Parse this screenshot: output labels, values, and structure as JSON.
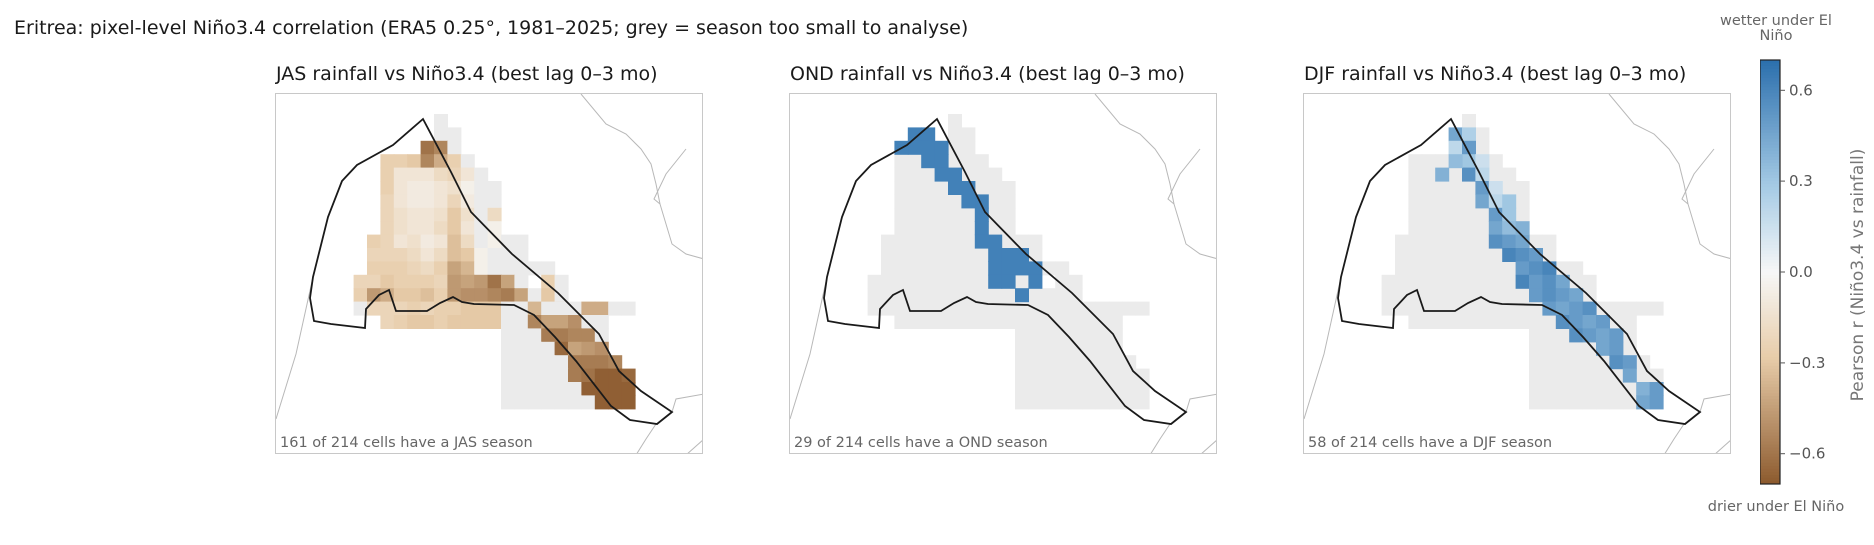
{
  "chart_data": {
    "type": "heatmap",
    "title": "Eritrea: pixel-level Niño3.4 correlation (ERA5 0.25°, 1981–2025; grey = season too small to analyse)",
    "colorbar": {
      "label": "Pearson r (Niño3.4 vs rainfall)",
      "range": [
        -0.7,
        0.7
      ],
      "ticks": [
        -0.6,
        -0.3,
        0.0,
        0.3,
        0.6
      ],
      "tick_labels": [
        "−0.6",
        "−0.3",
        "0.0",
        "0.3",
        "0.6"
      ],
      "top_label": "wetter under El Niño",
      "bottom_label": "drier under El Niño",
      "colors": {
        "negative": "#8c5a2e",
        "mid": "#f7f7f7",
        "positive": "#2b6fad"
      }
    },
    "grey_color": "#ebebeb",
    "panels": [
      {
        "season": "JAS",
        "title": "JAS rainfall vs Niño3.4 (best lag 0–3 mo)",
        "note": "161 of 214 cells have a JAS season",
        "rows": [
          "..........?.........",
          "..........??........",
          ".........QO?........",
          "......GGHOKG?.......",
          "......GCCCEFC?......",
          "......GCBBCDA??.....",
          "......FCBBCFB??.....",
          "......FDCCDHD?E.....",
          "......FDCCEHC?A.....",
          ".....GFCDBCIE?A??...",
          ".....FFFECEIHA???...",
          ".....GGGFEGLJA?????.",
          "....FFHGGGFMLMQL?.G?",
          "....GMKHHIGMNNOPL?H?",
          "....?FFFGFGGHHHHA?IH",
          "......FGHHGHHHHHHA??"
        ],
        "rows2": [
          "??J???KK??",
          "??OLLN??..",
          "???PPOO?..",
          "????RLMN..",
          "?????PPPO.",
          "?????PQSSR",
          "??????SSSS",
          "???????SSS"
        ]
      },
      {
        "season": "OND",
        "title": "OND rainfall vs Niño3.4 (best lag 0–3 mo)",
        "note": "29 of 214 cells have a OND season",
        "blue_cells": [
          [
            7,
            1
          ],
          [
            8,
            1
          ],
          [
            7,
            2
          ],
          [
            8,
            2
          ],
          [
            9,
            2
          ],
          [
            6,
            2
          ],
          [
            8,
            3
          ],
          [
            9,
            3
          ],
          [
            9,
            4
          ],
          [
            10,
            4
          ],
          [
            11,
            5
          ],
          [
            12,
            6
          ],
          [
            12,
            7
          ],
          [
            12,
            8
          ],
          [
            12,
            9
          ],
          [
            13,
            9
          ],
          [
            13,
            10
          ],
          [
            14,
            10
          ],
          [
            15,
            10
          ],
          [
            13,
            11
          ],
          [
            14,
            11
          ],
          [
            15,
            11
          ],
          [
            16,
            11
          ],
          [
            13,
            12
          ],
          [
            14,
            12
          ],
          [
            16,
            12
          ],
          [
            15,
            13
          ],
          [
            10,
            5
          ],
          [
            11,
            6
          ]
        ],
        "blue_value": 0.62
      },
      {
        "season": "DJF",
        "title": "DJF rainfall vs Niño3.4 (best lag 0–3 mo)",
        "note": "58 of 214 cells have a DJF season",
        "blue_cells": [
          [
            9,
            1
          ],
          [
            10,
            1
          ],
          [
            9,
            2
          ],
          [
            10,
            2
          ],
          [
            10,
            3
          ],
          [
            11,
            3
          ],
          [
            10,
            4
          ],
          [
            11,
            4
          ],
          [
            11,
            5
          ],
          [
            12,
            5
          ],
          [
            11,
            6
          ],
          [
            12,
            6
          ],
          [
            12,
            7
          ],
          [
            13,
            7
          ],
          [
            12,
            8
          ],
          [
            13,
            8
          ],
          [
            12,
            9
          ],
          [
            13,
            9
          ],
          [
            14,
            9
          ],
          [
            13,
            10
          ],
          [
            14,
            10
          ],
          [
            15,
            10
          ],
          [
            14,
            11
          ],
          [
            15,
            11
          ],
          [
            16,
            11
          ],
          [
            14,
            12
          ],
          [
            15,
            12
          ],
          [
            16,
            12
          ],
          [
            17,
            12
          ],
          [
            15,
            13
          ],
          [
            16,
            13
          ],
          [
            17,
            13
          ],
          [
            18,
            13
          ],
          [
            16,
            14
          ],
          [
            17,
            14
          ],
          [
            18,
            14
          ],
          [
            19,
            14
          ],
          [
            17,
            15
          ],
          [
            18,
            15
          ],
          [
            19,
            15
          ],
          [
            20,
            15
          ],
          [
            18,
            16
          ],
          [
            19,
            16
          ],
          [
            20,
            16
          ],
          [
            21,
            16
          ],
          [
            20,
            17
          ],
          [
            21,
            17
          ],
          [
            21,
            18
          ],
          [
            22,
            18
          ],
          [
            22,
            19
          ],
          [
            23,
            20
          ],
          [
            24,
            20
          ],
          [
            23,
            21
          ],
          [
            24,
            21
          ],
          [
            8,
            4
          ],
          [
            9,
            3
          ],
          [
            13,
            6
          ],
          [
            14,
            8
          ]
        ],
        "blue_values": [
          0.45,
          0.25,
          0.2,
          0.5,
          0.3,
          0.15,
          0.55,
          0.2,
          0.5,
          0.15,
          0.45,
          0.2,
          0.5,
          0.3,
          0.45,
          0.35,
          0.55,
          0.5,
          0.45,
          0.6,
          0.55,
          0.5,
          0.5,
          0.55,
          0.6,
          0.6,
          0.5,
          0.55,
          0.45,
          0.5,
          0.55,
          0.5,
          0.45,
          0.5,
          0.45,
          0.5,
          0.55,
          0.55,
          0.5,
          0.45,
          0.5,
          0.55,
          0.5,
          0.45,
          0.5,
          0.45,
          0.5,
          0.55,
          0.5,
          0.45,
          0.4,
          0.5,
          0.45,
          0.5,
          0.4,
          0.35,
          0.3,
          0.4
        ]
      }
    ]
  }
}
